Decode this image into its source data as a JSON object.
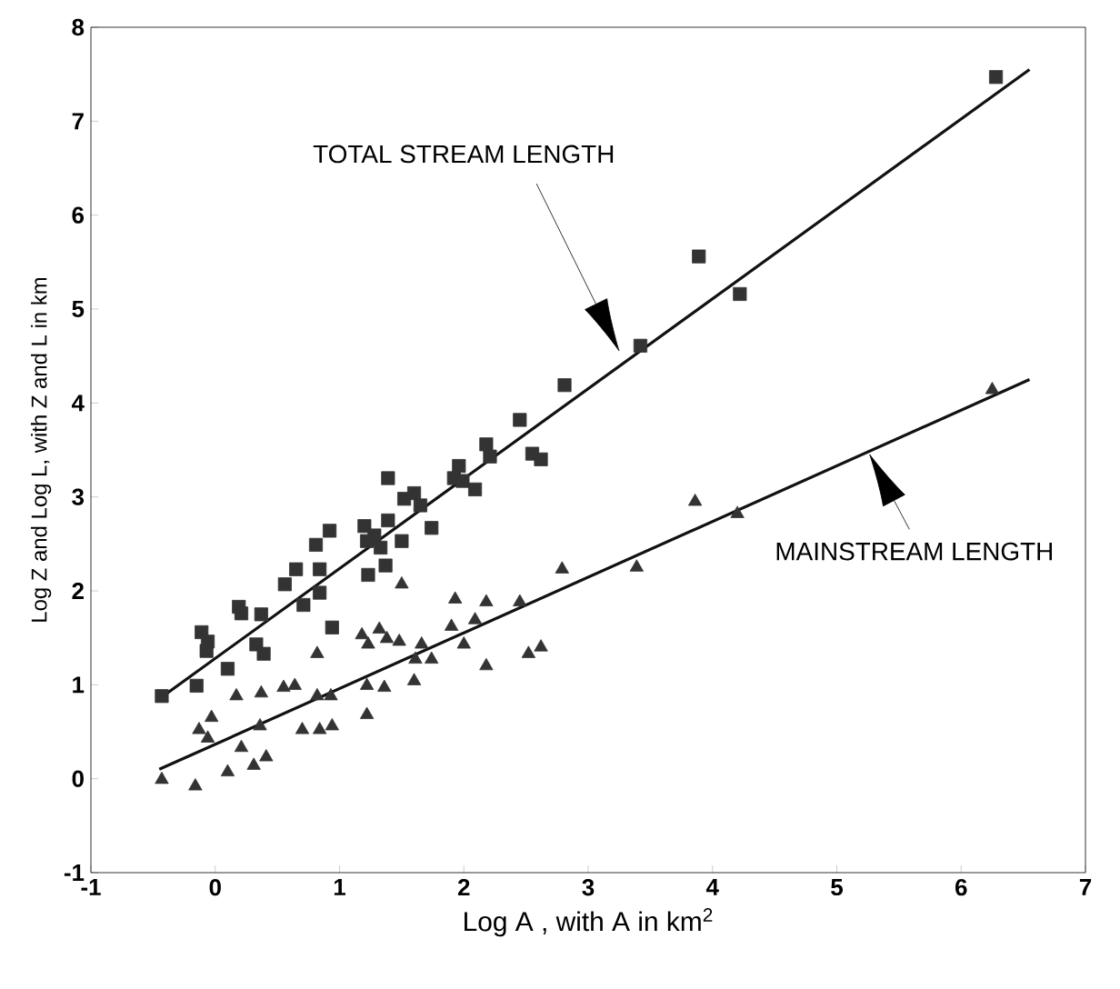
{
  "chart_data": {
    "type": "scatter",
    "xlabel": "Log A , with A in km$^{2}$",
    "ylabel": "Log Z and Log L, with Z and L in km",
    "xlim": [
      -1,
      7
    ],
    "ylim": [
      -1,
      8
    ],
    "xticks": [
      -1,
      0,
      1,
      2,
      3,
      4,
      5,
      6,
      7
    ],
    "yticks": [
      -1,
      0,
      1,
      2,
      3,
      4,
      5,
      6,
      7,
      8
    ],
    "grid": false,
    "annotations": [
      "TOTAL STREAM LENGTH",
      "MAINSTREAM LENGTH"
    ],
    "series": [
      {
        "marker": "square",
        "color": "#333333",
        "x": [
          -0.43,
          -0.15,
          -0.11,
          -0.06,
          -0.07,
          0.1,
          0.19,
          0.21,
          0.37,
          0.33,
          0.39,
          0.56,
          0.65,
          0.71,
          0.84,
          0.84,
          0.81,
          0.92,
          0.94,
          1.2,
          1.22,
          1.23,
          1.28,
          1.37,
          1.33,
          1.39,
          1.39,
          1.5,
          1.52,
          1.6,
          1.65,
          1.74,
          1.92,
          1.96,
          1.99,
          2.09,
          2.18,
          2.21,
          2.55,
          2.62,
          2.45,
          2.81,
          3.42,
          3.89,
          4.22,
          6.28
        ],
        "values": [
          0.88,
          0.99,
          1.56,
          1.46,
          1.36,
          1.17,
          1.83,
          1.76,
          1.75,
          1.43,
          1.33,
          2.07,
          2.23,
          1.85,
          1.98,
          2.23,
          2.49,
          2.64,
          1.61,
          2.69,
          2.53,
          2.17,
          2.59,
          2.27,
          2.46,
          3.2,
          2.75,
          2.53,
          2.98,
          3.04,
          2.91,
          2.67,
          3.2,
          3.33,
          3.17,
          3.08,
          3.56,
          3.43,
          3.46,
          3.4,
          3.82,
          4.19,
          4.61,
          5.56,
          5.16,
          7.47
        ]
      },
      {
        "marker": "triangle",
        "color": "#333333",
        "x": [
          -0.43,
          -0.16,
          -0.13,
          -0.03,
          -0.06,
          0.1,
          0.17,
          0.21,
          0.31,
          0.36,
          0.37,
          0.41,
          0.55,
          0.64,
          0.7,
          0.82,
          0.82,
          0.84,
          0.94,
          0.93,
          1.18,
          1.23,
          1.22,
          1.22,
          1.32,
          1.36,
          1.38,
          1.5,
          1.48,
          1.6,
          1.61,
          1.66,
          1.74,
          1.9,
          1.93,
          2.0,
          2.09,
          2.18,
          2.18,
          2.45,
          2.52,
          2.62,
          2.79,
          3.39,
          3.86,
          4.2,
          6.25
        ],
        "values": [
          -0.01,
          -0.08,
          0.52,
          0.65,
          0.43,
          0.07,
          0.88,
          0.33,
          0.14,
          0.56,
          0.91,
          0.23,
          0.97,
          0.99,
          0.52,
          0.88,
          1.33,
          0.52,
          0.56,
          0.88,
          1.53,
          1.43,
          0.99,
          0.68,
          1.59,
          0.97,
          1.49,
          2.07,
          1.46,
          1.04,
          1.27,
          1.43,
          1.27,
          1.62,
          1.91,
          1.43,
          1.69,
          1.88,
          1.2,
          1.88,
          1.33,
          1.4,
          2.23,
          2.25,
          2.95,
          2.82,
          4.14
        ]
      },
      {
        "type": "line",
        "marker": "none",
        "line_style": "solid",
        "color": "#111111",
        "x": [
          -0.45,
          6.55
        ],
        "values": [
          0.85,
          7.55
        ]
      },
      {
        "type": "line",
        "marker": "none",
        "line_style": "solid",
        "color": "#111111",
        "x": [
          -0.45,
          6.55
        ],
        "values": [
          0.1,
          4.25
        ]
      }
    ]
  }
}
